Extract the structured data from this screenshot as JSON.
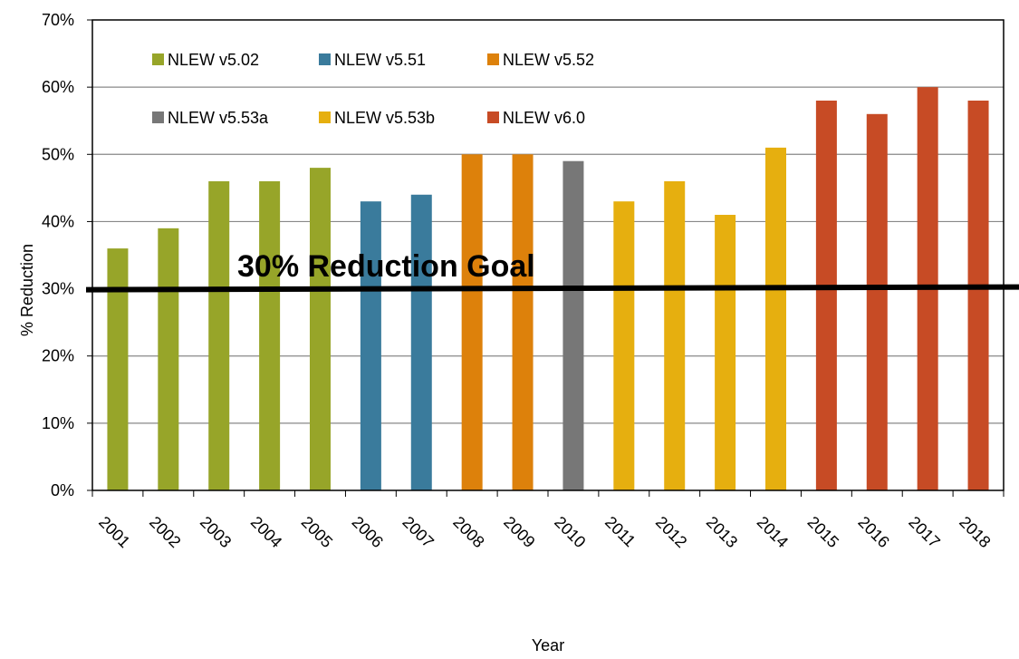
{
  "chart_data": {
    "type": "bar",
    "categories": [
      "2001",
      "2002",
      "2003",
      "2004",
      "2005",
      "2006",
      "2007",
      "2008",
      "2009",
      "2010",
      "2011",
      "2012",
      "2013",
      "2014",
      "2015",
      "2016",
      "2017",
      "2018"
    ],
    "values": [
      36,
      39,
      46,
      46,
      48,
      43,
      44,
      50,
      50,
      49,
      43,
      46,
      41,
      51,
      58,
      56,
      60,
      58
    ],
    "bar_series": [
      "NLEW v5.02",
      "NLEW v5.02",
      "NLEW v5.02",
      "NLEW v5.02",
      "NLEW v5.02",
      "NLEW v5.51",
      "NLEW v5.51",
      "NLEW v5.52",
      "NLEW v5.52",
      "NLEW v5.53a",
      "NLEW v5.53b",
      "NLEW v5.53b",
      "NLEW v5.53b",
      "NLEW v5.53b",
      "NLEW v6.0",
      "NLEW v6.0",
      "NLEW v6.0",
      "NLEW v6.0"
    ],
    "series": [
      {
        "name": "NLEW v5.02",
        "color": "#97A529"
      },
      {
        "name": "NLEW v5.51",
        "color": "#3A7B9C"
      },
      {
        "name": "NLEW v5.52",
        "color": "#DD810B"
      },
      {
        "name": "NLEW v5.53a",
        "color": "#777777"
      },
      {
        "name": "NLEW v5.53b",
        "color": "#E6AF0F"
      },
      {
        "name": "NLEW v6.0",
        "color": "#C74B25"
      }
    ],
    "ylim": [
      0,
      70
    ],
    "yticks": [
      "0%",
      "10%",
      "20%",
      "30%",
      "40%",
      "50%",
      "60%",
      "70%"
    ],
    "ytick_values": [
      0,
      10,
      20,
      30,
      40,
      50,
      60,
      70
    ],
    "xlabel": "Year",
    "ylabel": "% Reduction",
    "grid": true,
    "legend": "inside top, 3 columns",
    "reference_line": {
      "value": 30,
      "label": "30% Reduction Goal",
      "color": "#000000"
    }
  }
}
